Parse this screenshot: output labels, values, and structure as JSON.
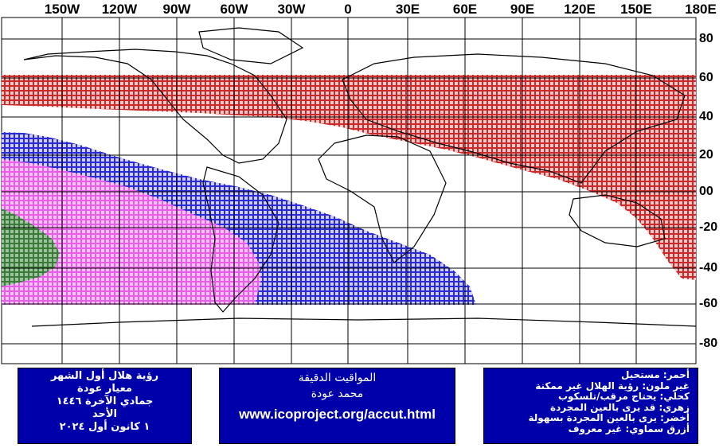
{
  "map": {
    "longitude_labels": [
      "150W",
      "120W",
      "90W",
      "60W",
      "30W",
      "0",
      "30E",
      "60E",
      "90E",
      "120E",
      "150E",
      "180E"
    ],
    "latitude_labels": [
      "80",
      "60",
      "40",
      "20",
      "00",
      "-20",
      "-40",
      "-60",
      "-80"
    ],
    "zone_colors": {
      "red": "#cc2a2a",
      "blue": "#2a2ad8",
      "magenta": "#e85de8",
      "green": "#3c7a3c"
    }
  },
  "left_panel": {
    "lines": [
      "رؤية هلال أول الشهر",
      "معيار عودة",
      "جمادي الآخرة ١٤٤٦",
      "الأحد",
      "١ كانون أول ٢٠٢٤"
    ]
  },
  "center_panel": {
    "title": "المواقيت الدقيقة",
    "author": "محمد عودة",
    "url": "www.icoproject.org/accut.html"
  },
  "right_panel": {
    "lines": [
      "أحمر: مستحيل",
      "غير ملون: رؤية الهلال غير ممكنة",
      "كحلي: يحتاج مرقب/تلسكوب",
      "زهري: قد يرى بالعين المجردة",
      "أخضر: يرى بالعين المجردة بسهولة",
      "أزرق سماوي: غير معروف"
    ]
  }
}
